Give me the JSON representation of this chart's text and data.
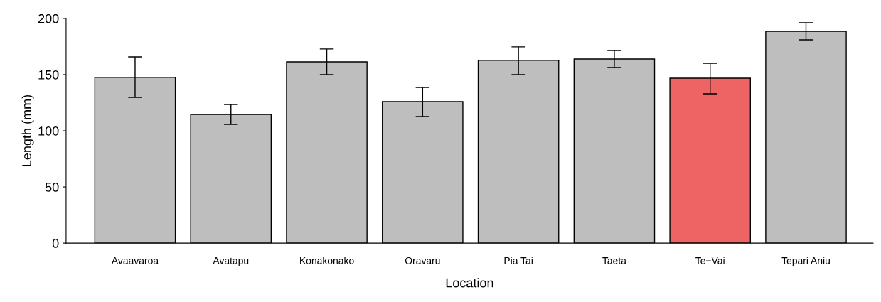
{
  "chart_data": {
    "type": "bar",
    "xlabel": "Location",
    "ylabel": "Length (mm)",
    "categories": [
      "Avaavaroa",
      "Avatapu",
      "Konakonako",
      "Oravaru",
      "Pia Tai",
      "Taeta",
      "Te−Vai",
      "Tepari Aniu"
    ],
    "values": [
      147.5,
      114.6,
      161.4,
      126,
      162.7,
      163.9,
      146.8,
      188.6
    ],
    "colors": [
      "#bebebe",
      "#bebebe",
      "#bebebe",
      "#bebebe",
      "#bebebe",
      "#bebebe",
      "#ee6363",
      "#bebebe"
    ],
    "errors": [
      [
        129.7,
        165.8
      ],
      [
        105.7,
        123.4
      ],
      [
        150,
        172.8
      ],
      [
        112.7,
        138.6
      ],
      [
        150,
        174.7
      ],
      [
        156.3,
        171.5
      ],
      [
        132.9,
        160.1
      ],
      [
        181,
        196.2
      ]
    ],
    "ylim": [
      0,
      200
    ],
    "yticks": [
      0,
      50,
      100,
      150,
      200
    ],
    "grid": false
  }
}
